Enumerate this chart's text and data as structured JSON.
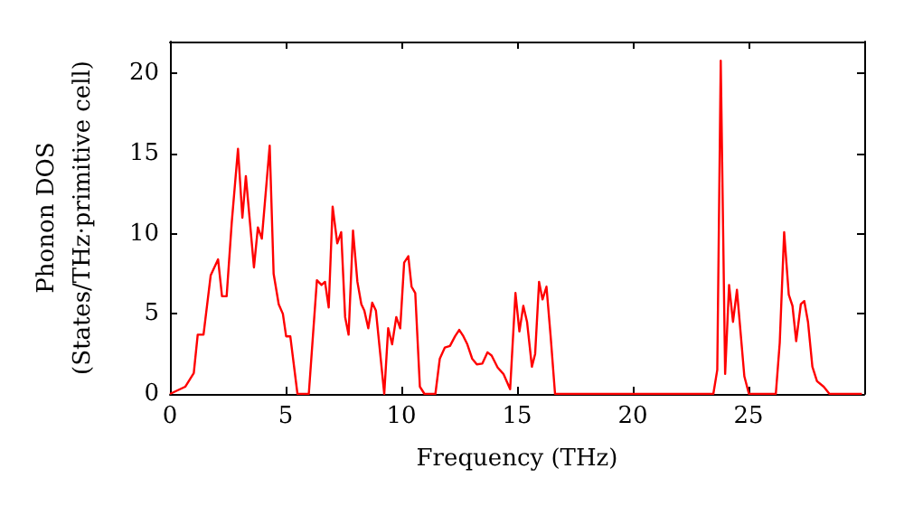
{
  "chart_data": {
    "type": "line",
    "xlabel": "Frequency (THz)",
    "ylabel": "Phonon DOS\n(States/THz·primitive cell)",
    "xlim": [
      0,
      30
    ],
    "ylim": [
      0,
      22
    ],
    "xticks": [
      0,
      5,
      10,
      15,
      20,
      25
    ],
    "yticks": [
      0,
      5,
      10,
      15,
      20
    ],
    "series": [
      {
        "color": "#ff0000",
        "x": [
          0,
          0.66,
          1.03,
          1.2,
          1.45,
          1.76,
          2.08,
          2.25,
          2.45,
          2.67,
          2.94,
          3.13,
          3.28,
          3.63,
          3.8,
          3.97,
          4.31,
          4.48,
          4.7,
          4.88,
          5.02,
          5.2,
          5.51,
          6.0,
          6.35,
          6.55,
          6.7,
          6.86,
          7.03,
          7.23,
          7.4,
          7.57,
          7.72,
          7.91,
          8.1,
          8.27,
          8.4,
          8.57,
          8.74,
          8.9,
          9.26,
          9.43,
          9.6,
          9.78,
          9.95,
          10.12,
          10.3,
          10.44,
          10.6,
          10.8,
          11.0,
          11.47,
          11.66,
          11.88,
          12.1,
          12.32,
          12.5,
          12.68,
          12.85,
          13.06,
          13.26,
          13.5,
          13.72,
          13.9,
          14.16,
          14.41,
          14.7,
          14.93,
          15.1,
          15.27,
          15.43,
          15.64,
          15.78,
          15.95,
          16.1,
          16.27,
          16.45,
          16.64,
          23.48,
          23.65,
          23.8,
          23.99,
          24.16,
          24.33,
          24.5,
          24.82,
          25.02,
          26.18,
          26.35,
          26.54,
          26.74,
          26.9,
          27.06,
          27.26,
          27.41,
          27.57,
          27.76,
          27.96,
          28.25,
          28.5,
          29.9
        ],
        "values": [
          0,
          0.45,
          1.3,
          3.7,
          3.7,
          7.4,
          8.4,
          6.1,
          6.1,
          10.7,
          15.3,
          11,
          13.6,
          7.9,
          10.4,
          9.7,
          15.5,
          7.5,
          5.6,
          5,
          3.6,
          3.6,
          0,
          0,
          7.1,
          6.8,
          7,
          5.4,
          11.7,
          9.4,
          10.1,
          4.8,
          3.7,
          10.2,
          7,
          5.6,
          5.2,
          4.1,
          5.7,
          5.2,
          0,
          4.1,
          3.1,
          4.8,
          4.1,
          8.2,
          8.6,
          6.7,
          6.3,
          0.45,
          0,
          0,
          2.2,
          2.9,
          3,
          3.6,
          4,
          3.6,
          3.1,
          2.2,
          1.85,
          1.9,
          2.6,
          2.4,
          1.65,
          1.25,
          0.3,
          6.3,
          3.9,
          5.5,
          4.5,
          1.7,
          2.5,
          7,
          5.9,
          6.7,
          3.6,
          0,
          0,
          1.5,
          20.8,
          1.25,
          6.8,
          4.5,
          6.5,
          1.1,
          0,
          0,
          3.2,
          10.1,
          6.2,
          5.5,
          3.3,
          5.6,
          5.8,
          4.5,
          1.7,
          0.8,
          0.45,
          0,
          0
        ]
      }
    ]
  }
}
